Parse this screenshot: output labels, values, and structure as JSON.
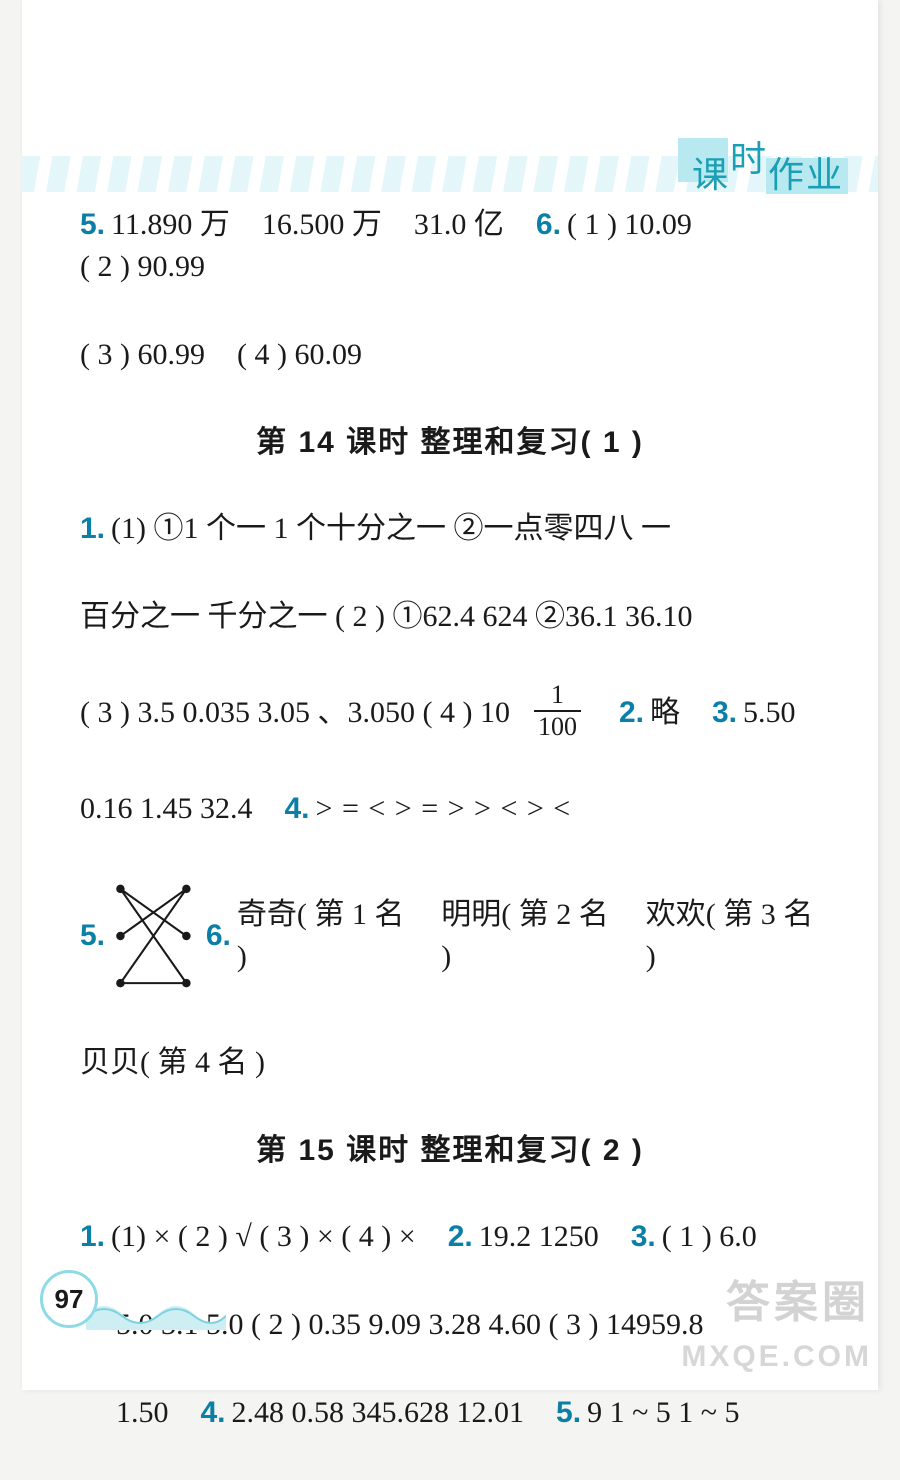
{
  "header": {
    "label_chars": [
      "课",
      "时",
      "作",
      "业"
    ]
  },
  "page_number": "97",
  "watermarks": {
    "top": "答案圈",
    "bottom": "MXQE.COM"
  },
  "colors": {
    "number": "#0b7fa6",
    "text": "#1a1a1a",
    "header_text": "#1a9fb5",
    "highlight": "#b9e9f0",
    "band_stripe": "#d9f3f6",
    "page_accent": "#8edbe6",
    "background": "#ffffff"
  },
  "top_block": {
    "line1": {
      "n5": "5.",
      "vals5": [
        "11.890 万",
        "16.500 万",
        "31.0 亿"
      ],
      "n6": "6.",
      "vals6": [
        "( 1 ) 10.09",
        "( 2 ) 90.99"
      ]
    },
    "line2": [
      "( 3 ) 60.99",
      "( 4 ) 60.09"
    ]
  },
  "section14": {
    "title": "第 14 课时  整理和复习( 1 )",
    "q1": {
      "n": "1.",
      "l1": "(1) ①1 个一  1 个十分之一  ②一点零四八  一",
      "l2": "百分之一  千分之一  ( 2 ) ①62.4  624  ②36.1  36.10",
      "l3_a": "( 3 ) 3.5  0.035  3.05 、3.050  ( 4 ) 10",
      "frac": {
        "num": "1",
        "den": "100"
      }
    },
    "q2": {
      "n": "2.",
      "v": "略"
    },
    "q3": {
      "n": "3.",
      "v": "5.50"
    },
    "q3_line2": "0.16  1.45  32.4",
    "q4": {
      "n": "4.",
      "v": ">  =  <  >  =  >  >  <  >  <"
    },
    "q5": {
      "n": "5."
    },
    "q6": {
      "n": "6.",
      "parts": [
        "奇奇( 第 1 名 )",
        "明明( 第 2 名 )",
        "欢欢( 第 3 名 )"
      ],
      "tail": "贝贝( 第 4 名 )"
    },
    "matching": {
      "left_y": [
        10,
        60,
        110
      ],
      "right_y": [
        10,
        60,
        110
      ],
      "edges": [
        [
          0,
          1
        ],
        [
          0,
          2
        ],
        [
          1,
          0
        ],
        [
          2,
          0
        ],
        [
          2,
          2
        ]
      ],
      "dot_r": 4.5,
      "stroke": "#1a1a1a",
      "stroke_width": 2.2
    }
  },
  "section15": {
    "title": "第 15 课时  整理和复习( 2 )",
    "q1": {
      "n": "1.",
      "v": "(1) ×  ( 2 ) √  ( 3 ) ×  ( 4 ) ×"
    },
    "q2": {
      "n": "2.",
      "v": "19.2  1250"
    },
    "q3": {
      "n": "3.",
      "v": "( 1 ) 6.0"
    },
    "l2": "5.0  3.1  5.0  ( 2 ) 0.35  9.09  3.28  4.60  ( 3 ) 14959.8",
    "l3_a": "1.50",
    "q4": {
      "n": "4.",
      "v": "2.48  0.58  345.628  12.01"
    },
    "q5": {
      "n": "5.",
      "v": "9  1 ~ 5  1 ~ 5"
    }
  }
}
